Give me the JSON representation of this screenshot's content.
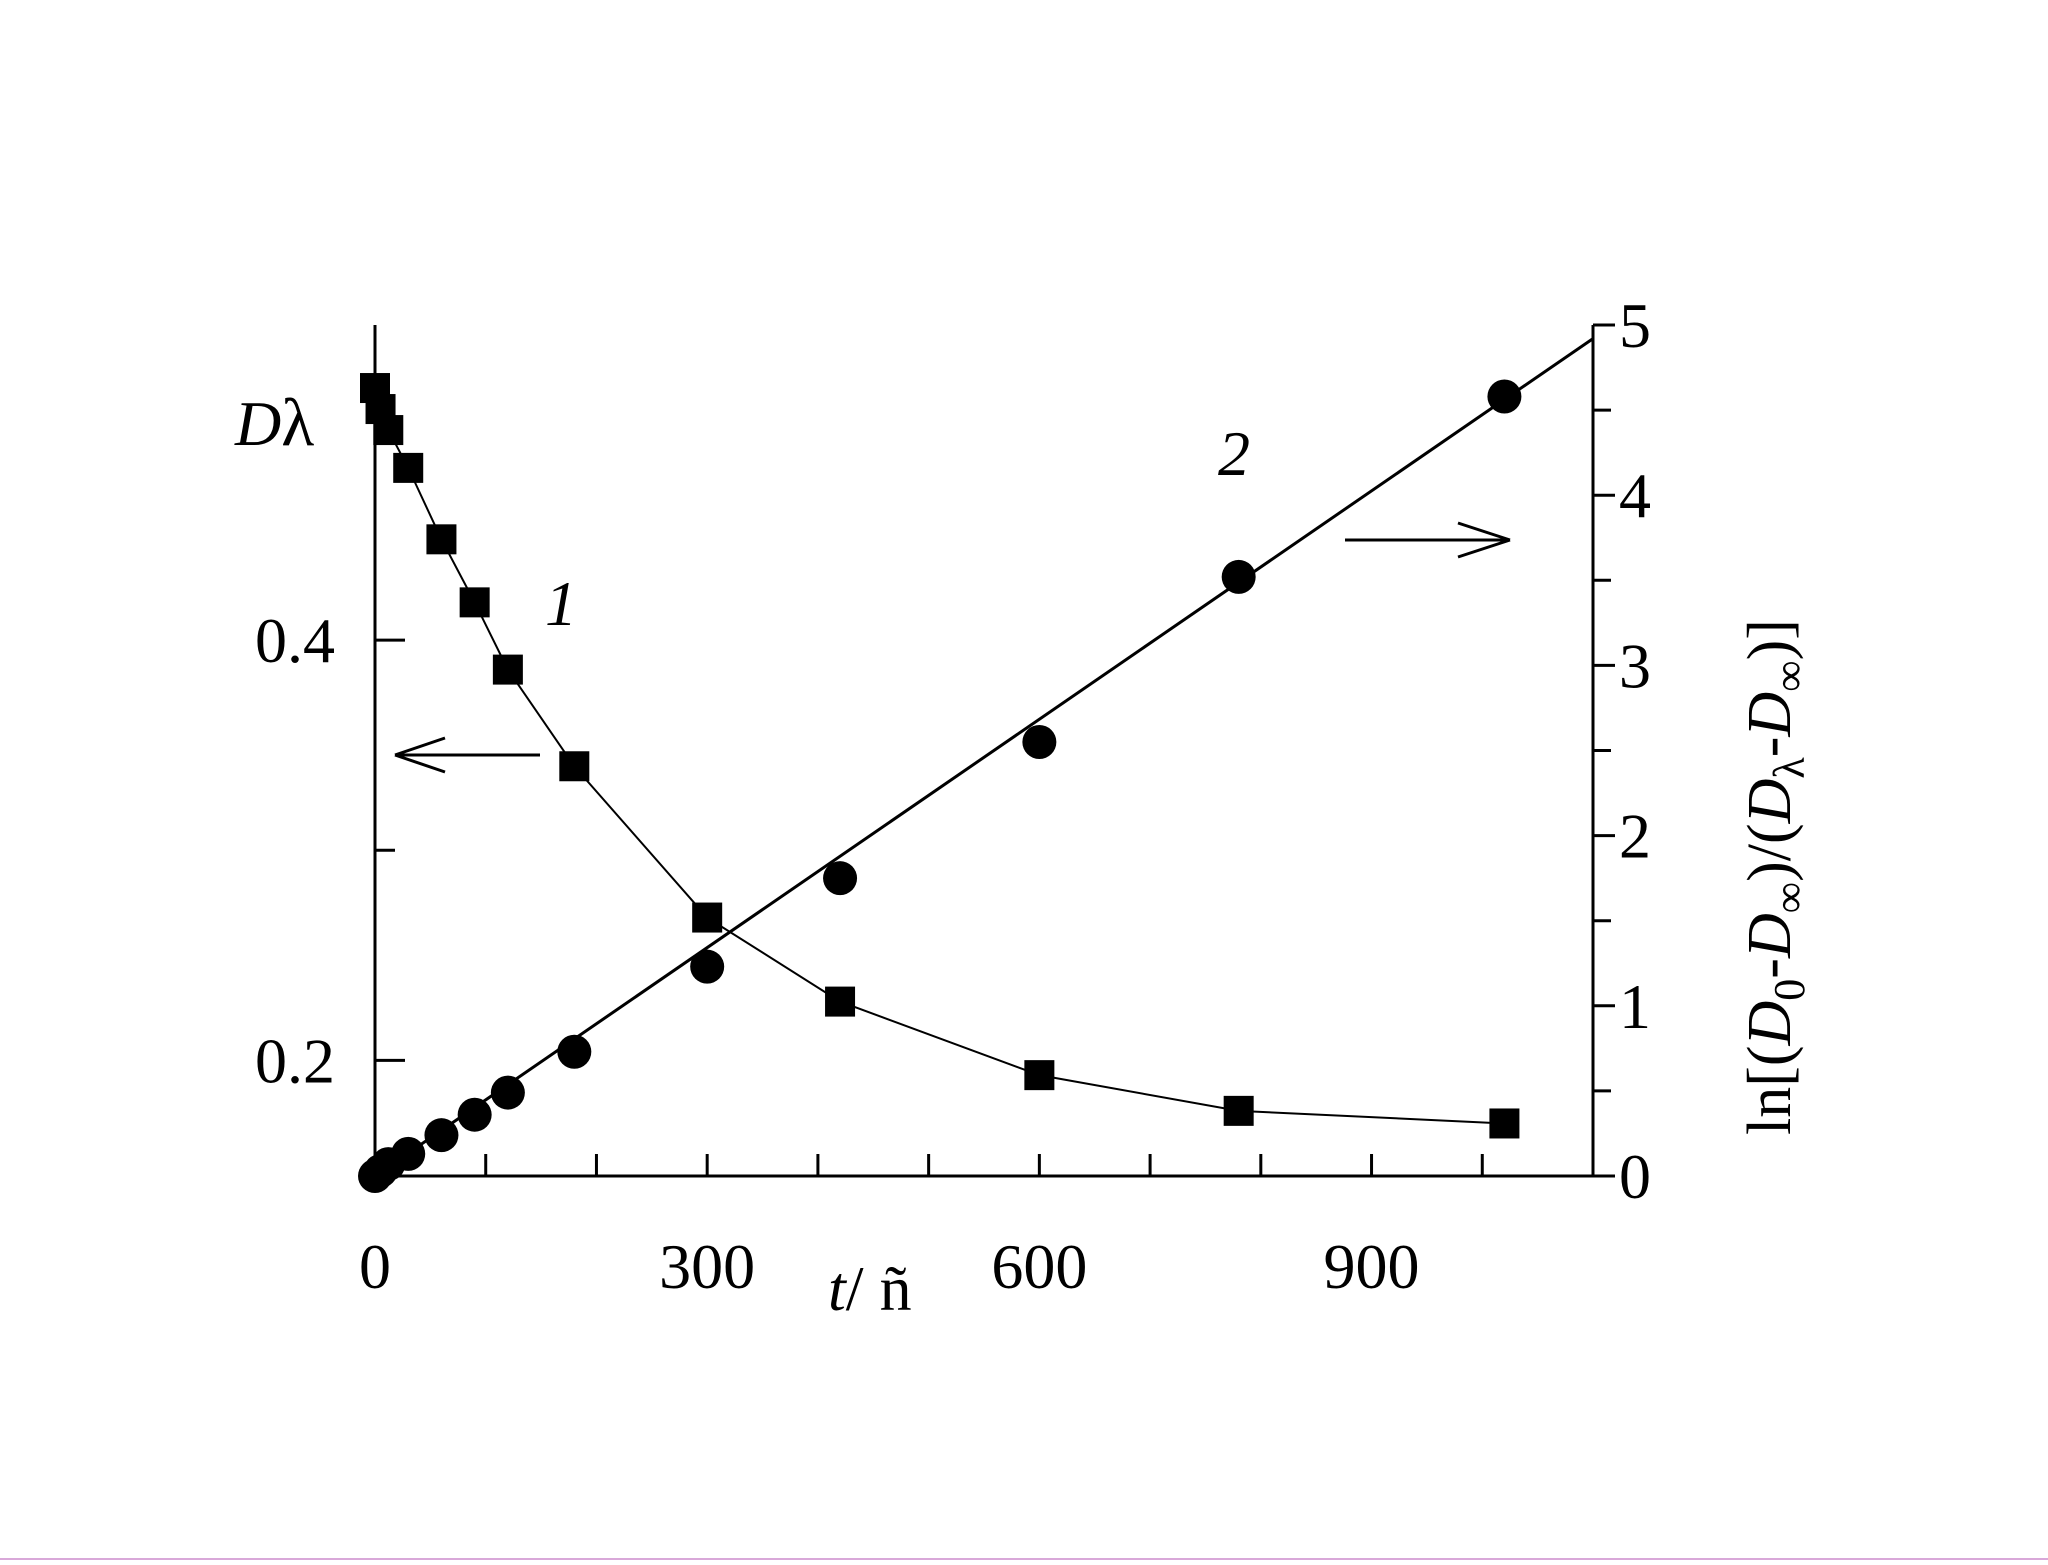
{
  "chart_data": {
    "type": "scatter",
    "x_axis": {
      "label_var": "t",
      "label_unit": "/ ñ",
      "range": [
        0,
        1100
      ],
      "ticks": [
        0,
        300,
        600,
        900
      ],
      "minor_step": 100
    },
    "y_left": {
      "label_base": "D",
      "label_sub": "λ",
      "range": [
        0.145,
        0.55
      ],
      "ticks": [
        0.2,
        0.4
      ],
      "tick_labels": [
        "0.2",
        "0.4"
      ],
      "minor_step": 0.1
    },
    "y_right": {
      "label": "ln[(D0-D∞)/(Dλ-D∞)]",
      "range": [
        0,
        5
      ],
      "ticks": [
        0,
        1,
        2,
        3,
        4,
        5
      ],
      "tick_labels": [
        "0",
        "1",
        "2",
        "3",
        "4",
        "5"
      ],
      "minor_step": 0.5
    },
    "series": [
      {
        "name": "1",
        "axis": "left",
        "marker": "square",
        "connected": true,
        "points": [
          [
            0,
            0.52
          ],
          [
            5,
            0.51
          ],
          [
            12,
            0.5
          ],
          [
            30,
            0.482
          ],
          [
            60,
            0.448
          ],
          [
            90,
            0.418
          ],
          [
            120,
            0.386
          ],
          [
            180,
            0.34
          ],
          [
            300,
            0.268
          ],
          [
            420,
            0.228
          ],
          [
            600,
            0.193
          ],
          [
            780,
            0.176
          ],
          [
            1020,
            0.17
          ]
        ]
      },
      {
        "name": "2",
        "axis": "right",
        "marker": "circle",
        "connected": false,
        "points": [
          [
            0,
            0.0
          ],
          [
            5,
            0.03
          ],
          [
            12,
            0.07
          ],
          [
            30,
            0.13
          ],
          [
            60,
            0.24
          ],
          [
            90,
            0.36
          ],
          [
            120,
            0.49
          ],
          [
            180,
            0.73
          ],
          [
            300,
            1.23
          ],
          [
            420,
            1.75
          ],
          [
            600,
            2.55
          ],
          [
            780,
            3.52
          ],
          [
            1020,
            4.58
          ]
        ]
      }
    ],
    "fit_line": {
      "axis": "right",
      "x": [
        0,
        1100
      ],
      "y": [
        0,
        4.92
      ]
    },
    "annotations": [
      {
        "text": "1",
        "series": "1"
      },
      {
        "text": "2",
        "series": "2"
      }
    ],
    "arrows": [
      {
        "direction": "left",
        "points_to": "left-axis"
      },
      {
        "direction": "right",
        "points_to": "right-axis"
      }
    ],
    "grid": false,
    "legend": "none"
  }
}
